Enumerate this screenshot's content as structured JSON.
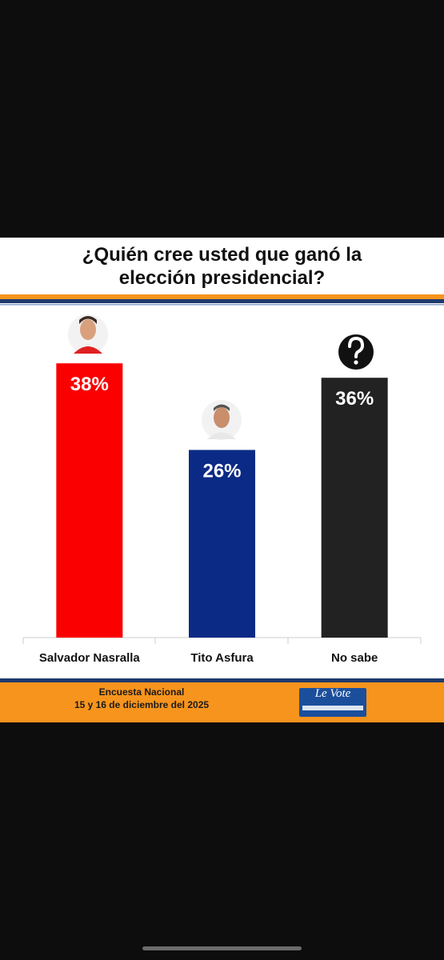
{
  "chart_data": {
    "type": "bar",
    "title": "¿Quién cree usted que ganó la elección presidencial?",
    "categories": [
      "Salvador Nasralla",
      "Tito Asfura",
      "No sabe"
    ],
    "values": [
      38,
      26,
      36
    ],
    "value_labels": [
      "38%",
      "26%",
      "36%"
    ],
    "colors": [
      "#fb0000",
      "#0b2a85",
      "#222222"
    ],
    "ylim": [
      0,
      45
    ],
    "footer": {
      "survey": "Encuesta Nacional",
      "date": "15 y 16 de diciembre del 2025",
      "logo": "Le Vote"
    }
  }
}
